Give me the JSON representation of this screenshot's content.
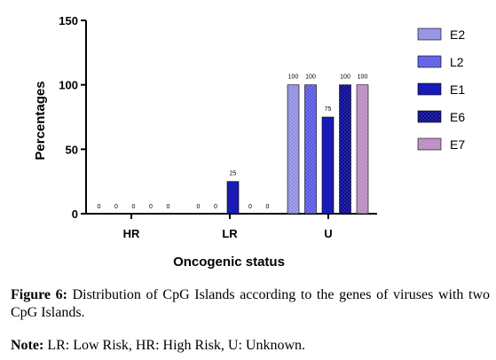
{
  "chart_data": {
    "type": "bar",
    "ylabel": "Percentages",
    "xlabel": "Oncogenic status",
    "ylim": [
      0,
      150
    ],
    "yticks": [
      0,
      50,
      100,
      150
    ],
    "categories": [
      "HR",
      "LR",
      "U"
    ],
    "legend_position": "right",
    "series": [
      {
        "name": "E2",
        "color": "#8f8fe0",
        "pattern": "dots-light",
        "values": [
          0,
          0,
          100
        ]
      },
      {
        "name": "L2",
        "color": "#6060e8",
        "pattern": "dots",
        "values": [
          0,
          0,
          100
        ]
      },
      {
        "name": "E1",
        "color": "#1a1ab4",
        "pattern": "solid",
        "values": [
          0,
          25,
          75
        ]
      },
      {
        "name": "E6",
        "color": "#0c0c8c",
        "pattern": "dots-dark",
        "values": [
          0,
          0,
          100
        ]
      },
      {
        "name": "E7",
        "color": "#b88ac0",
        "pattern": "dots-light",
        "values": [
          0,
          0,
          100
        ]
      }
    ]
  },
  "caption": {
    "label": "Figure 6:",
    "text": " Distribution of CpG Islands according to the genes of viruses with two CpG Islands."
  },
  "note": {
    "label": "Note:",
    "text": " LR: Low Risk, HR: High Risk, U: Unknown."
  }
}
